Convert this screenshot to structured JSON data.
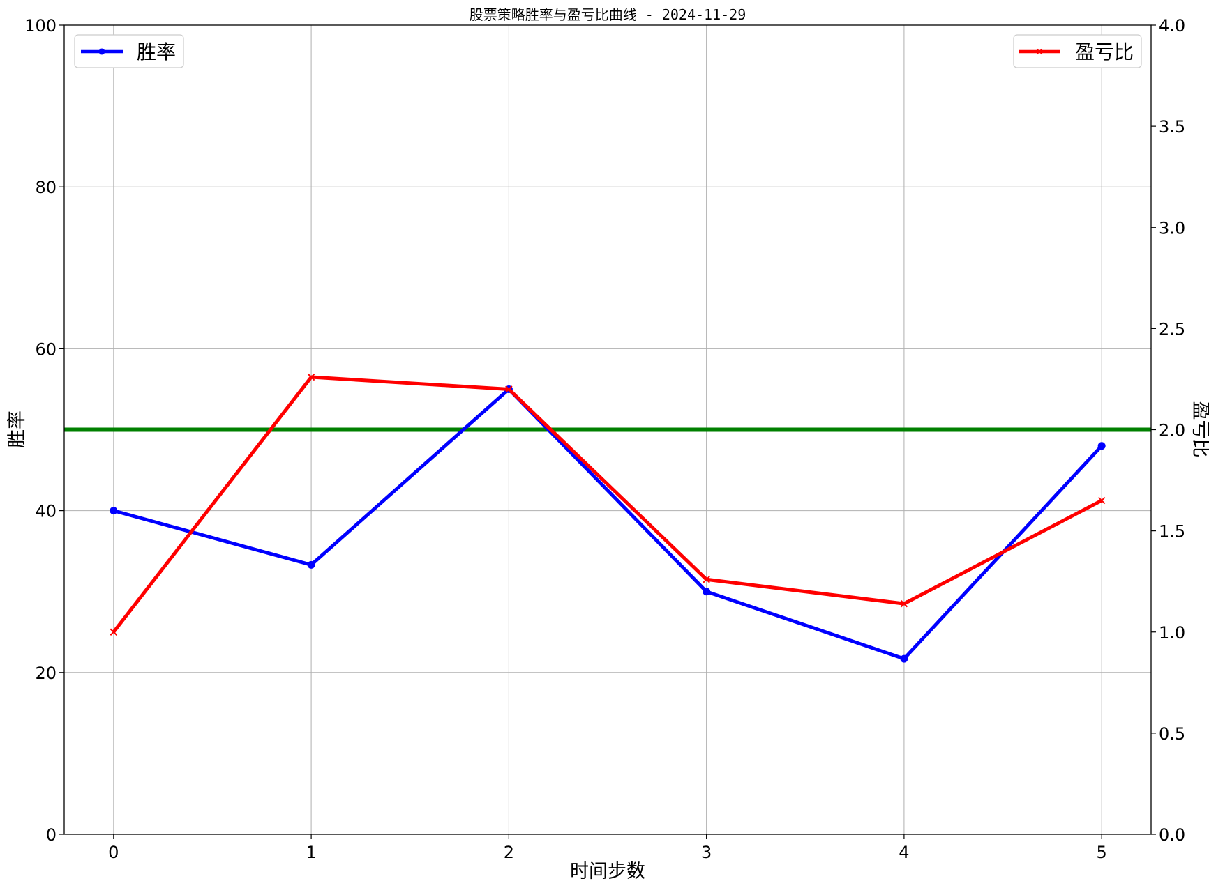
{
  "chart_data": {
    "type": "line",
    "title": "股票策略胜率与盈亏比曲线 - 2024-11-29",
    "xlabel": "时间步数",
    "ylabel_left": "胜率",
    "ylabel_right": "盈亏比",
    "x": [
      0,
      1,
      2,
      3,
      4,
      5
    ],
    "xticks": [
      "0",
      "1",
      "2",
      "3",
      "4",
      "5"
    ],
    "xlim": [
      -0.25,
      5.25
    ],
    "ylim_left": [
      0,
      100
    ],
    "yticks_left": [
      "0",
      "20",
      "40",
      "60",
      "80",
      "100"
    ],
    "ylim_right": [
      0,
      4
    ],
    "yticks_right": [
      "0.0",
      "0.5",
      "1.0",
      "1.5",
      "2.0",
      "2.5",
      "3.0",
      "3.5",
      "4.0"
    ],
    "grid": true,
    "series": [
      {
        "name": "胜率",
        "axis": "left",
        "color": "#0000ff",
        "marker": "circle",
        "legend": "top-left",
        "values": [
          40.0,
          33.3,
          55.0,
          30.0,
          21.7,
          48.0
        ]
      },
      {
        "name": "盈亏比",
        "axis": "right",
        "color": "#ff0000",
        "marker": "x",
        "legend": "top-right",
        "values": [
          1.0,
          2.26,
          2.2,
          1.26,
          1.14,
          1.65
        ]
      }
    ],
    "reference_line": {
      "axis": "right",
      "value": 2.0,
      "color": "#008000"
    }
  }
}
